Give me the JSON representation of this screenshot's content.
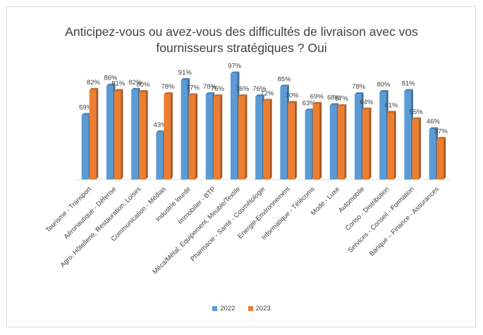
{
  "chart_data": {
    "type": "bar",
    "title": "Anticipez-vous ou avez-vous des difficultés de livraison avec vos\nfournisseurs stratégiques ? Oui",
    "categories": [
      "Tourisme - Transport",
      "Aéronautique - Défense",
      "Agro, Hôtellerie, Restauration, Loisirs",
      "Communication - Médias",
      "Industrie lourde",
      "Immobilier - BTP",
      "Méca/Métal, Equipement, Meuble/Textile",
      "Pharmacie - Santé - Cosmétologie",
      "Energie-Environnement",
      "Informatique - Télécoms",
      "Mode - Luxe",
      "Automobile",
      "Conso - Distribution",
      "Services - Conseil - Formation",
      "Banque – Finance - Assurances"
    ],
    "series": [
      {
        "name": "2022",
        "color": "#5b9bd5",
        "values": [
          59,
          86,
          82,
          43,
          91,
          78,
          97,
          76,
          85,
          63,
          68,
          78,
          80,
          81,
          46
        ],
        "labels": [
          "59%",
          "86%",
          "82%",
          "43%",
          "91%",
          "78%",
          "97%",
          "76%",
          "85%",
          "63%",
          "68%",
          "78%",
          "80%",
          "81%",
          "46%"
        ]
      },
      {
        "name": "2023",
        "color": "#ed7d31",
        "values": [
          82,
          81,
          80,
          78,
          77,
          76,
          76,
          72,
          70,
          69,
          67,
          64,
          61,
          55,
          37
        ],
        "labels": [
          "82%",
          "81%",
          "80%",
          "78%",
          "77%",
          "76%",
          "76%",
          "72%",
          "70%",
          "69%",
          "67%",
          "64%",
          "61%",
          "55%",
          "37%"
        ]
      }
    ],
    "ylim": [
      0,
      100
    ],
    "xlabel": "",
    "ylabel": "",
    "grid": false,
    "legend_position": "bottom"
  }
}
